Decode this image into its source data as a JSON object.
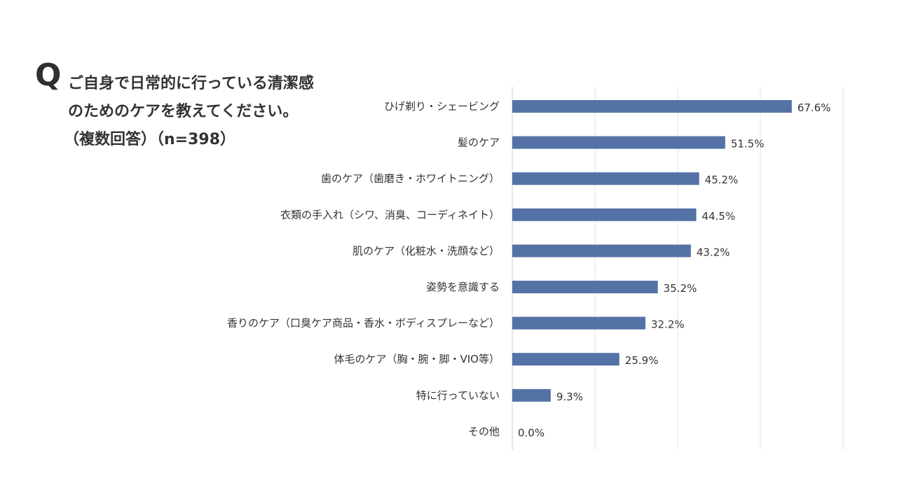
{
  "question": {
    "mark": "Q",
    "line1": "ご自身で日常的に行っている清潔感",
    "line2": "のためのケアを教えてください。",
    "line3": "（複数回答）（n=398）"
  },
  "chart_data": {
    "type": "bar",
    "orientation": "horizontal",
    "title": "ご自身で日常的に行っている清潔感のためのケアを教えてください。（複数回答）（n=398）",
    "categories": [
      "ひげ剃り・シェービング",
      "髪のケア",
      "歯のケア（歯磨き・ホワイトニング）",
      "衣類の手入れ（シワ、消臭、コーディネイト）",
      "肌のケア（化粧水・洗顔など）",
      "姿勢を意識する",
      "香りのケア（口臭ケア商品・香水・ボディスプレーなど）",
      "体毛のケア（胸・腕・脚・VIO等）",
      "特に行っていない",
      "その他"
    ],
    "values": [
      67.6,
      51.5,
      45.2,
      44.5,
      43.2,
      35.2,
      32.2,
      25.9,
      9.3,
      0.0
    ],
    "value_labels": [
      "67.6%",
      "51.5%",
      "45.2%",
      "44.5%",
      "43.2%",
      "35.2%",
      "32.2%",
      "25.9%",
      "9.3%",
      "0.0%"
    ],
    "xlim": [
      0,
      80
    ],
    "grid": true,
    "bar_color": "#5472a6",
    "grid_color": "#e3e3e3"
  }
}
